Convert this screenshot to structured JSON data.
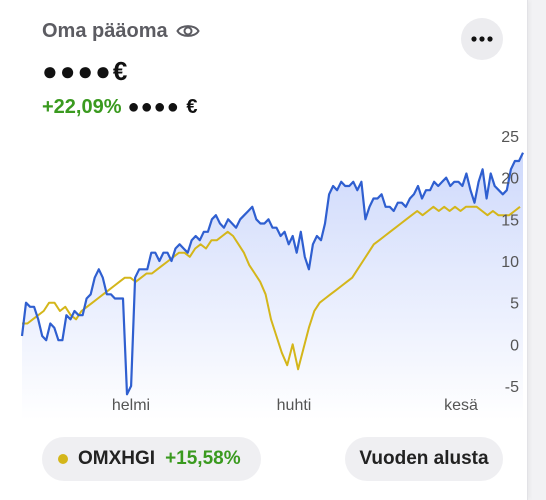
{
  "header": {
    "title": "Oma pääoma",
    "visibility_icon": "eye-icon",
    "more_icon": "more-horizontal-icon"
  },
  "balance": {
    "masked_value": "●●●●€"
  },
  "change": {
    "percent": "+22,09%",
    "masked_amount": "●●●● €"
  },
  "legend": {
    "index_name": "OMXHGI",
    "index_change": "+15,58%",
    "index_color": "#d4b61a"
  },
  "period_button": {
    "label": "Vuoden alusta"
  },
  "colors": {
    "portfolio_line": "#2f5fd0",
    "portfolio_fill_top": "#c9d5fb",
    "index_line": "#d4b61a",
    "positive": "#3a9a1f"
  },
  "chart_data": {
    "type": "line",
    "x_ticks": [
      "helmi",
      "huhti",
      "kesä"
    ],
    "y_ticks": [
      25,
      20,
      15,
      10,
      5,
      0,
      -5
    ],
    "ylim": [
      -6,
      26
    ],
    "grid": false,
    "series": [
      {
        "values": [
          1,
          5,
          4.5,
          4.5,
          3,
          1,
          0.5,
          2.5,
          2,
          0.5,
          0.5,
          3.5,
          3,
          4,
          3.5,
          3.5,
          5.5,
          6,
          8,
          9,
          8,
          6,
          6,
          5.5,
          5.5,
          5.5,
          -6,
          -5,
          8,
          9,
          9,
          9,
          11,
          11,
          10,
          11,
          11,
          10,
          11.5,
          12,
          11.5,
          11,
          12.5,
          13,
          12.5,
          13.5,
          13.5,
          15,
          15.5,
          14.5,
          14,
          15,
          14.5,
          14,
          15,
          15.5,
          16,
          16.5,
          15,
          14.5,
          14.5,
          15,
          14,
          14,
          13,
          13.5,
          12,
          13,
          11,
          13.5,
          10.5,
          9,
          12,
          13,
          12.5,
          14.5,
          18,
          19,
          18.5,
          19.5,
          19,
          19,
          19.5,
          18.5,
          19.5,
          15,
          16.5,
          17.5,
          17.5,
          18,
          16.5,
          16.5,
          16,
          17,
          17,
          16.5,
          17.5,
          18,
          19,
          17.5,
          18.5,
          18.5,
          19.5,
          19,
          19.5,
          20,
          19,
          19.5,
          19.5,
          19,
          20.5,
          18.5,
          17,
          19.5,
          21,
          17.5,
          20.5,
          19,
          18.5,
          18,
          18.5,
          21,
          22,
          22,
          23
        ]
      },
      {
        "values": [
          2.5,
          2.5,
          3,
          3.5,
          4,
          5,
          5,
          4,
          4.5,
          3.5,
          3,
          4,
          4.5,
          5,
          5.5,
          6,
          6.5,
          7,
          7.5,
          8,
          8,
          7.5,
          8,
          8.5,
          8.5,
          9,
          9.5,
          10,
          10.5,
          11,
          11,
          10.5,
          11.5,
          12,
          11.5,
          12.5,
          12.5,
          13,
          13.5,
          13,
          12,
          11,
          9.5,
          8.5,
          7.5,
          6,
          3,
          1,
          -1,
          -2.5,
          0,
          -3,
          -0.5,
          2,
          4,
          5,
          5.5,
          6,
          6.5,
          7,
          7.5,
          8,
          9,
          10,
          11,
          12,
          12.5,
          13,
          13.5,
          14,
          14.5,
          15,
          15.5,
          16,
          15.5,
          16,
          16.5,
          16,
          16.5,
          16,
          16.5,
          16,
          16.5,
          16.5,
          16.5,
          16,
          15.5,
          16,
          15.5,
          15.5,
          15.5,
          16,
          16.5
        ]
      }
    ]
  }
}
